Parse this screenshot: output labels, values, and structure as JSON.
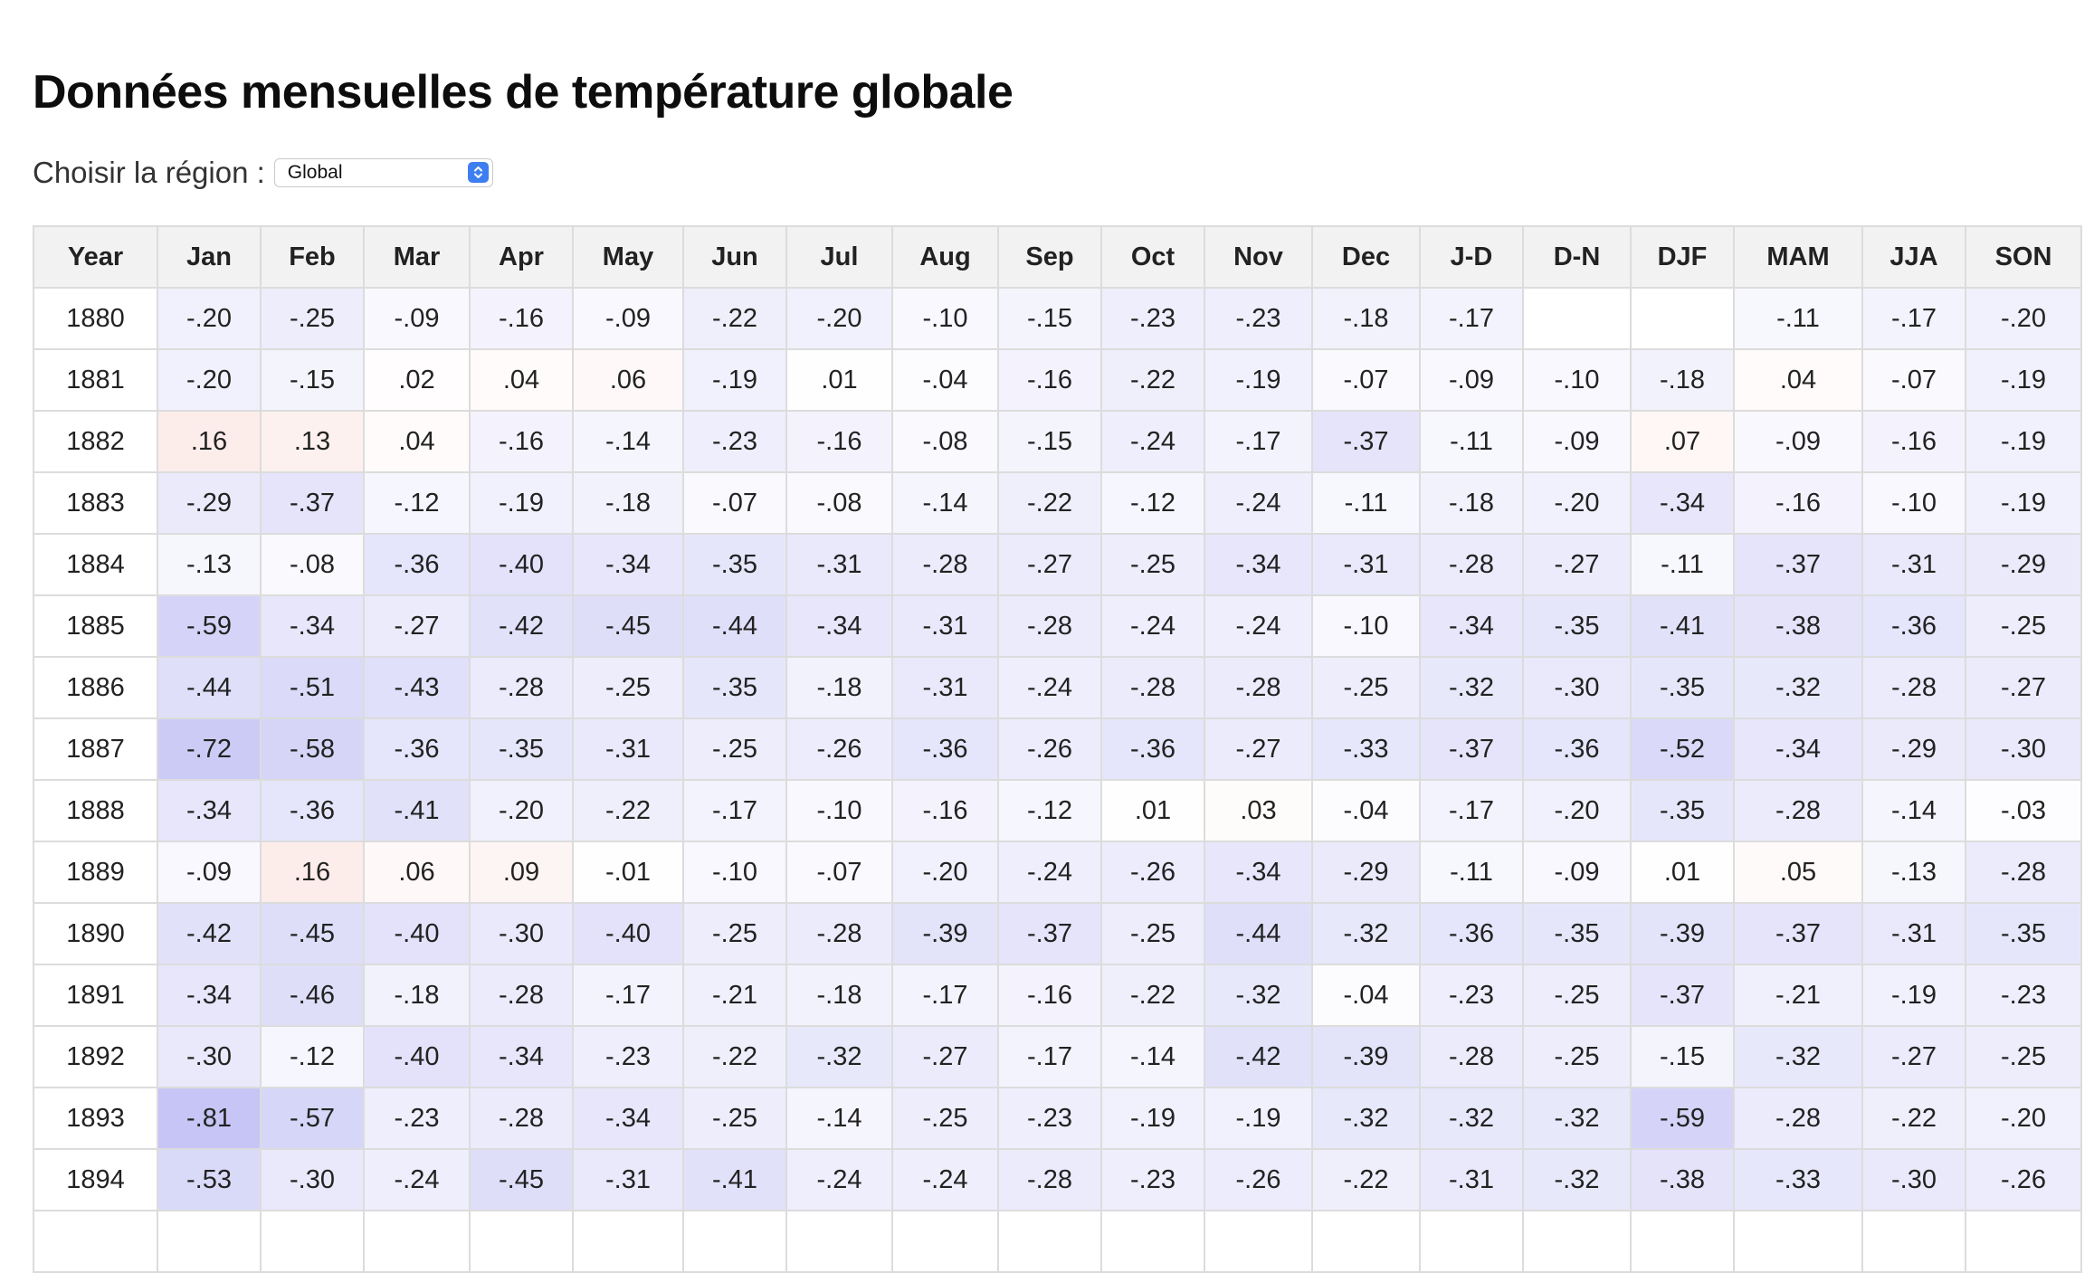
{
  "page": {
    "title": "Données mensuelles de température globale"
  },
  "region": {
    "label": "Choisir la région :",
    "selected": "Global"
  },
  "table": {
    "headers": [
      "Year",
      "Jan",
      "Feb",
      "Mar",
      "Apr",
      "May",
      "Jun",
      "Jul",
      "Aug",
      "Sep",
      "Oct",
      "Nov",
      "Dec",
      "J-D",
      "D-N",
      "DJF",
      "MAM",
      "JJA",
      "SON"
    ],
    "rows": [
      [
        "1880",
        "-.20",
        "-.25",
        "-.09",
        "-.16",
        "-.09",
        "-.22",
        "-.20",
        "-.10",
        "-.15",
        "-.23",
        "-.23",
        "-.18",
        "-.17",
        "",
        "",
        "-.11",
        "-.17",
        "-.20"
      ],
      [
        "1881",
        "-.20",
        "-.15",
        ".02",
        ".04",
        ".06",
        "-.19",
        ".01",
        "-.04",
        "-.16",
        "-.22",
        "-.19",
        "-.07",
        "-.09",
        "-.10",
        "-.18",
        ".04",
        "-.07",
        "-.19"
      ],
      [
        "1882",
        ".16",
        ".13",
        ".04",
        "-.16",
        "-.14",
        "-.23",
        "-.16",
        "-.08",
        "-.15",
        "-.24",
        "-.17",
        "-.37",
        "-.11",
        "-.09",
        ".07",
        "-.09",
        "-.16",
        "-.19"
      ],
      [
        "1883",
        "-.29",
        "-.37",
        "-.12",
        "-.19",
        "-.18",
        "-.07",
        "-.08",
        "-.14",
        "-.22",
        "-.12",
        "-.24",
        "-.11",
        "-.18",
        "-.20",
        "-.34",
        "-.16",
        "-.10",
        "-.19"
      ],
      [
        "1884",
        "-.13",
        "-.08",
        "-.36",
        "-.40",
        "-.34",
        "-.35",
        "-.31",
        "-.28",
        "-.27",
        "-.25",
        "-.34",
        "-.31",
        "-.28",
        "-.27",
        "-.11",
        "-.37",
        "-.31",
        "-.29"
      ],
      [
        "1885",
        "-.59",
        "-.34",
        "-.27",
        "-.42",
        "-.45",
        "-.44",
        "-.34",
        "-.31",
        "-.28",
        "-.24",
        "-.24",
        "-.10",
        "-.34",
        "-.35",
        "-.41",
        "-.38",
        "-.36",
        "-.25"
      ],
      [
        "1886",
        "-.44",
        "-.51",
        "-.43",
        "-.28",
        "-.25",
        "-.35",
        "-.18",
        "-.31",
        "-.24",
        "-.28",
        "-.28",
        "-.25",
        "-.32",
        "-.30",
        "-.35",
        "-.32",
        "-.28",
        "-.27"
      ],
      [
        "1887",
        "-.72",
        "-.58",
        "-.36",
        "-.35",
        "-.31",
        "-.25",
        "-.26",
        "-.36",
        "-.26",
        "-.36",
        "-.27",
        "-.33",
        "-.37",
        "-.36",
        "-.52",
        "-.34",
        "-.29",
        "-.30"
      ],
      [
        "1888",
        "-.34",
        "-.36",
        "-.41",
        "-.20",
        "-.22",
        "-.17",
        "-.10",
        "-.16",
        "-.12",
        ".01",
        ".03",
        "-.04",
        "-.17",
        "-.20",
        "-.35",
        "-.28",
        "-.14",
        "-.03"
      ],
      [
        "1889",
        "-.09",
        ".16",
        ".06",
        ".09",
        "-.01",
        "-.10",
        "-.07",
        "-.20",
        "-.24",
        "-.26",
        "-.34",
        "-.29",
        "-.11",
        "-.09",
        ".01",
        ".05",
        "-.13",
        "-.28"
      ],
      [
        "1890",
        "-.42",
        "-.45",
        "-.40",
        "-.30",
        "-.40",
        "-.25",
        "-.28",
        "-.39",
        "-.37",
        "-.25",
        "-.44",
        "-.32",
        "-.36",
        "-.35",
        "-.39",
        "-.37",
        "-.31",
        "-.35"
      ],
      [
        "1891",
        "-.34",
        "-.46",
        "-.18",
        "-.28",
        "-.17",
        "-.21",
        "-.18",
        "-.17",
        "-.16",
        "-.22",
        "-.32",
        "-.04",
        "-.23",
        "-.25",
        "-.37",
        "-.21",
        "-.19",
        "-.23"
      ],
      [
        "1892",
        "-.30",
        "-.12",
        "-.40",
        "-.34",
        "-.23",
        "-.22",
        "-.32",
        "-.27",
        "-.17",
        "-.14",
        "-.42",
        "-.39",
        "-.28",
        "-.25",
        "-.15",
        "-.32",
        "-.27",
        "-.25"
      ],
      [
        "1893",
        "-.81",
        "-.57",
        "-.23",
        "-.28",
        "-.34",
        "-.25",
        "-.14",
        "-.25",
        "-.23",
        "-.19",
        "-.19",
        "-.32",
        "-.32",
        "-.32",
        "-.59",
        "-.28",
        "-.22",
        "-.20"
      ],
      [
        "1894",
        "-.53",
        "-.30",
        "-.24",
        "-.45",
        "-.31",
        "-.41",
        "-.24",
        "-.24",
        "-.28",
        "-.23",
        "-.26",
        "-.22",
        "-.31",
        "-.32",
        "-.38",
        "-.33",
        "-.30",
        "-.26"
      ],
      [
        "",
        "",
        "",
        "",
        "",
        "",
        "",
        "",
        "",
        "",
        "",
        "",
        "",
        "",
        "",
        "",
        "",
        "",
        ""
      ]
    ]
  },
  "colors": {
    "cold_max": "#c6c5f5",
    "warm_max": "#fbe9e6",
    "neutral": "#ffffff",
    "header_bg": "#f2f2f2",
    "select_accent": "#3d7ff0"
  },
  "icons": {
    "select": "chevron-up-down-icon"
  }
}
